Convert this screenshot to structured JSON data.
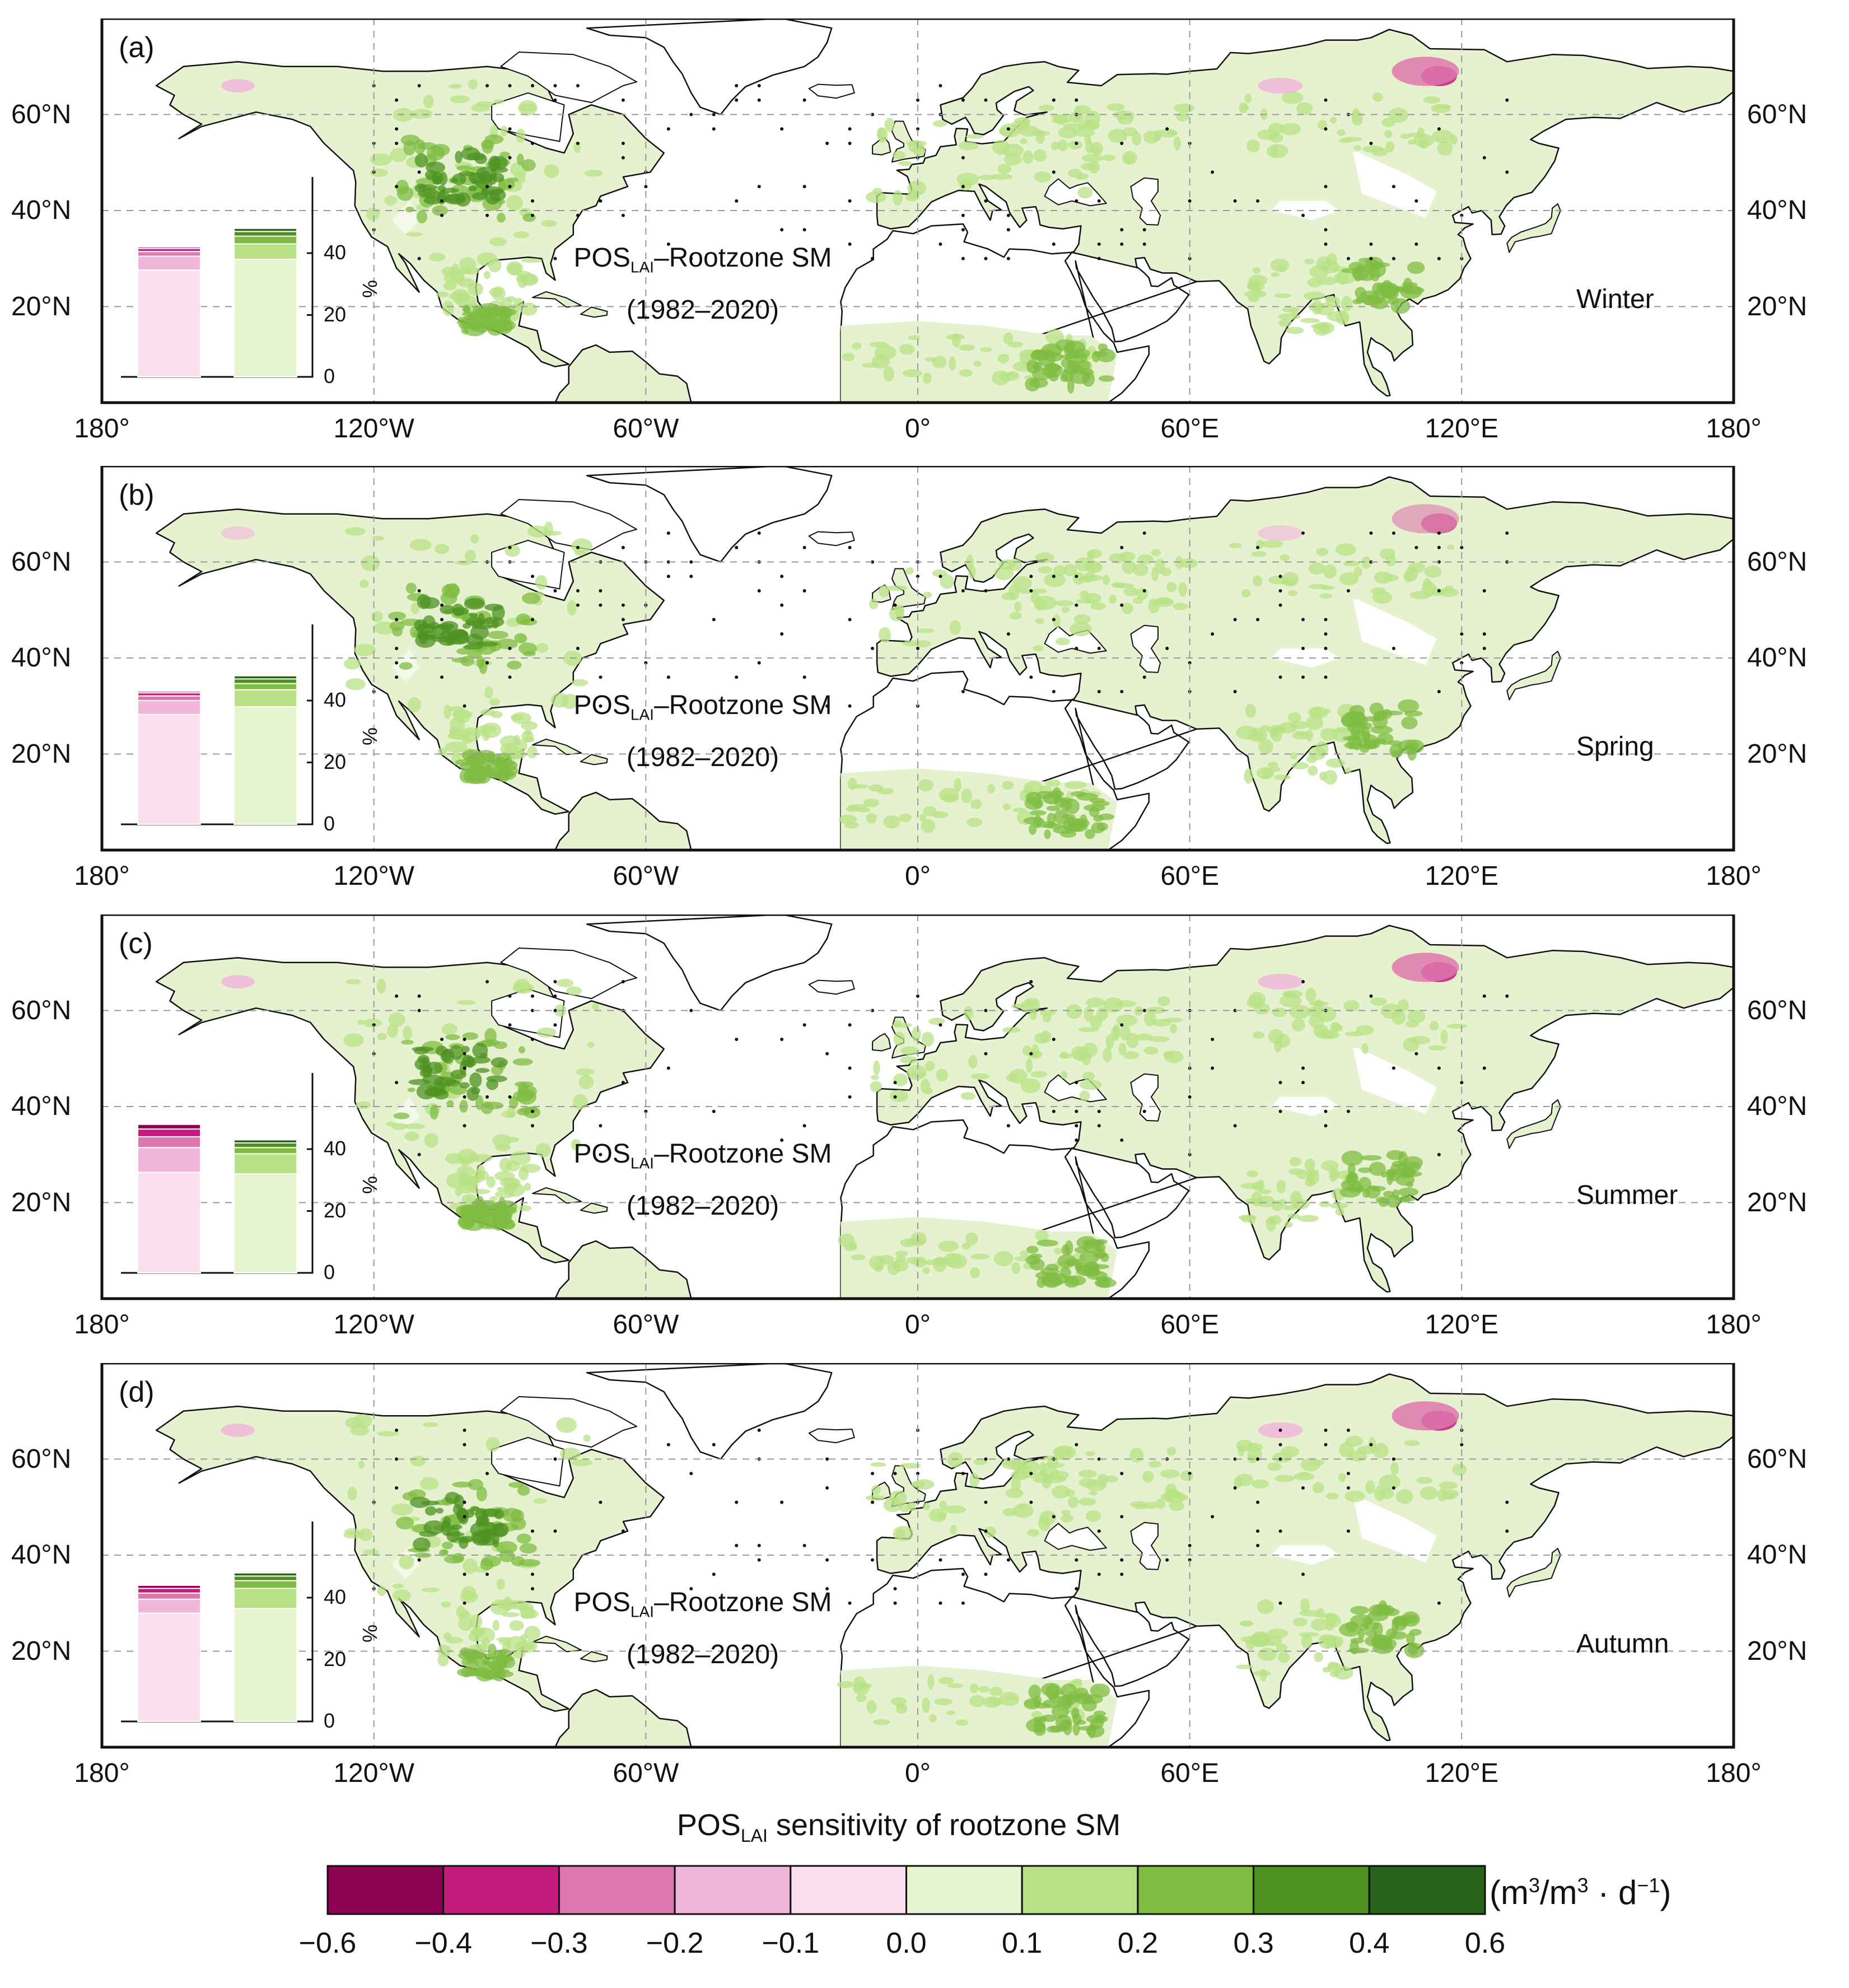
{
  "figure": {
    "lat_labels": [
      "60°N",
      "40°N",
      "20°N"
    ],
    "lon_labels": [
      "180°",
      "120°W",
      "60°W",
      "0°",
      "60°E",
      "120°E",
      "180°"
    ],
    "panel_annotation": {
      "line1_main": "POS",
      "line1_sub": "LAI",
      "line1_rest": "–Rootzone SM",
      "line2": "(1982–2020)"
    },
    "inset_axis": {
      "ticks": [
        "0",
        "20",
        "40"
      ],
      "unit": "%"
    },
    "panels": [
      {
        "label": "(a)",
        "season": "Winter",
        "inset": {
          "negative_pct": 42,
          "positive_pct": 48,
          "neg_stack": [
            {
              "bin": "-0.1–0.0",
              "pct": 34.5
            },
            {
              "bin": "-0.2–-0.1",
              "pct": 4.5
            },
            {
              "bin": "-0.3–-0.2",
              "pct": 1.5
            },
            {
              "bin": "-0.4–-0.3",
              "pct": 1.0
            },
            {
              "bin": "-0.6–-0.4",
              "pct": 0.5
            }
          ],
          "pos_stack": [
            {
              "bin": "0.0–0.1",
              "pct": 38
            },
            {
              "bin": "0.1–0.2",
              "pct": 5
            },
            {
              "bin": "0.2–0.3",
              "pct": 2.5
            },
            {
              "bin": "0.3–0.4",
              "pct": 1.5
            },
            {
              "bin": "0.4–0.6",
              "pct": 1
            }
          ]
        }
      },
      {
        "label": "(b)",
        "season": "Spring",
        "inset": {
          "negative_pct": 43,
          "positive_pct": 48,
          "neg_stack": [
            {
              "bin": "-0.1–0.0",
              "pct": 35.5
            },
            {
              "bin": "-0.2–-0.1",
              "pct": 4.5
            },
            {
              "bin": "-0.3–-0.2",
              "pct": 1.5
            },
            {
              "bin": "-0.4–-0.3",
              "pct": 1.0
            },
            {
              "bin": "-0.6–-0.4",
              "pct": 0.5
            }
          ],
          "pos_stack": [
            {
              "bin": "0.0–0.1",
              "pct": 38
            },
            {
              "bin": "0.1–0.2",
              "pct": 5.5
            },
            {
              "bin": "0.2–0.3",
              "pct": 2
            },
            {
              "bin": "0.3–0.4",
              "pct": 1.5
            },
            {
              "bin": "0.4–0.6",
              "pct": 1
            }
          ]
        }
      },
      {
        "label": "(c)",
        "season": "Summer",
        "inset": {
          "negative_pct": 48,
          "positive_pct": 43,
          "neg_stack": [
            {
              "bin": "-0.1–0.0",
              "pct": 32.5
            },
            {
              "bin": "-0.2–-0.1",
              "pct": 8
            },
            {
              "bin": "-0.3–-0.2",
              "pct": 3.5
            },
            {
              "bin": "-0.4–-0.3",
              "pct": 2.5
            },
            {
              "bin": "-0.6–-0.4",
              "pct": 1.5
            }
          ],
          "pos_stack": [
            {
              "bin": "0.0–0.1",
              "pct": 32
            },
            {
              "bin": "0.1–0.2",
              "pct": 6.5
            },
            {
              "bin": "0.2–0.3",
              "pct": 2
            },
            {
              "bin": "0.3–0.4",
              "pct": 1.5
            },
            {
              "bin": "0.4–0.6",
              "pct": 1
            }
          ]
        }
      },
      {
        "label": "(d)",
        "season": "Autumn",
        "inset": {
          "negative_pct": 44,
          "positive_pct": 48,
          "neg_stack": [
            {
              "bin": "-0.1–0.0",
              "pct": 35
            },
            {
              "bin": "-0.2–-0.1",
              "pct": 4.5
            },
            {
              "bin": "-0.3–-0.2",
              "pct": 2
            },
            {
              "bin": "-0.4–-0.3",
              "pct": 1.5
            },
            {
              "bin": "-0.6–-0.4",
              "pct": 1
            }
          ],
          "pos_stack": [
            {
              "bin": "0.0–0.1",
              "pct": 36.5
            },
            {
              "bin": "0.1–0.2",
              "pct": 6.5
            },
            {
              "bin": "0.2–0.3",
              "pct": 2.5
            },
            {
              "bin": "0.3–0.4",
              "pct": 1.5
            },
            {
              "bin": "0.4–0.6",
              "pct": 1
            }
          ]
        }
      }
    ],
    "legend": {
      "title_main": "POS",
      "title_sub": "LAI",
      "title_rest": " sensitivity of rootzone SM",
      "unit_a": "(m",
      "unit_sup1": "3",
      "unit_b": "/m",
      "unit_sup2": "3",
      "unit_c": " · d",
      "unit_sup3": "−1",
      "unit_d": ")",
      "ticks": [
        "−0.6",
        "−0.4",
        "−0.3",
        "−0.2",
        "−0.1",
        "0.0",
        "0.1",
        "0.2",
        "0.3",
        "0.4",
        "0.6"
      ],
      "colors": [
        "#8e0152",
        "#c51b7d",
        "#de77ae",
        "#f1b6da",
        "#fde0ef",
        "#e6f5d0",
        "#b8e186",
        "#7fbc41",
        "#4d9221",
        "#276419"
      ]
    }
  }
}
